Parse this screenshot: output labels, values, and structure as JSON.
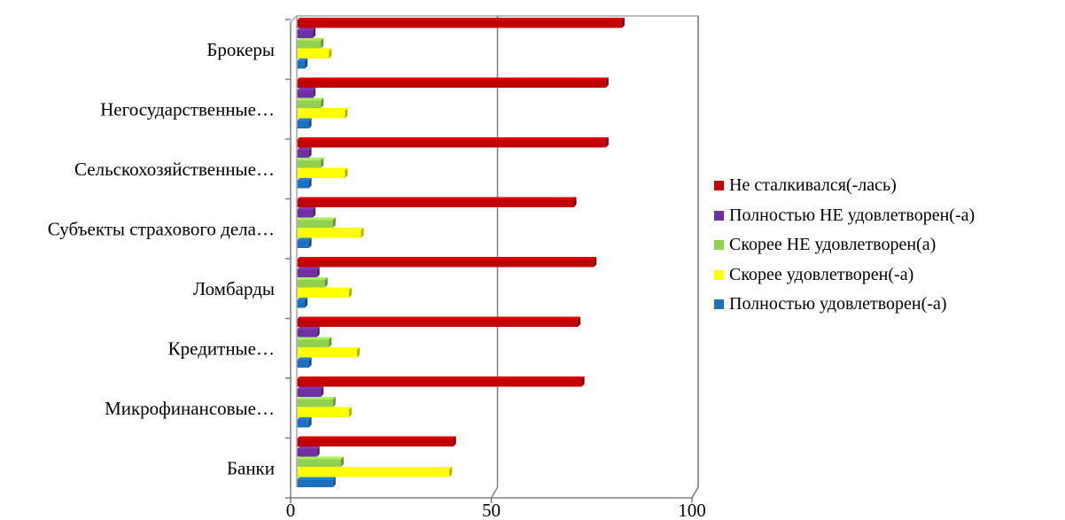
{
  "chart_data": {
    "type": "bar",
    "orientation": "horizontal",
    "categories": [
      "Банки",
      "Микрофинансовые…",
      "Кредитные…",
      "Ломбарды",
      "Субъекты страхового дела…",
      "Сельскохозяйственные…",
      "Негосударственные…",
      "Брокеры"
    ],
    "series": [
      {
        "name": "Полностью удовлетворен(-а)",
        "color": "#1f6fbf",
        "values": [
          9,
          3,
          3,
          2,
          3,
          3,
          3,
          2
        ]
      },
      {
        "name": "Скорее удовлетворен(-а)",
        "color": "#ffff00",
        "values": [
          38,
          13,
          15,
          13,
          16,
          12,
          12,
          8
        ]
      },
      {
        "name": "Скорее НЕ удовлетворен(а)",
        "color": "#92d050",
        "values": [
          11,
          9,
          8,
          7,
          9,
          6,
          6,
          6
        ]
      },
      {
        "name": "Полностью НЕ удовлетворен(-а)",
        "color": "#7030a0",
        "values": [
          5,
          6,
          5,
          5,
          4,
          3,
          4,
          4
        ]
      },
      {
        "name": "Не сталкивался(-лась)",
        "color": "#c00000",
        "values": [
          39,
          71,
          70,
          74,
          69,
          77,
          77,
          81
        ]
      }
    ],
    "legend_order": [
      4,
      3,
      2,
      1,
      0
    ],
    "xlim": [
      0,
      100
    ],
    "xticks": [
      "0",
      "50",
      "100"
    ],
    "grid": true,
    "legend_position": "right",
    "title": "",
    "xlabel": "",
    "ylabel": ""
  }
}
